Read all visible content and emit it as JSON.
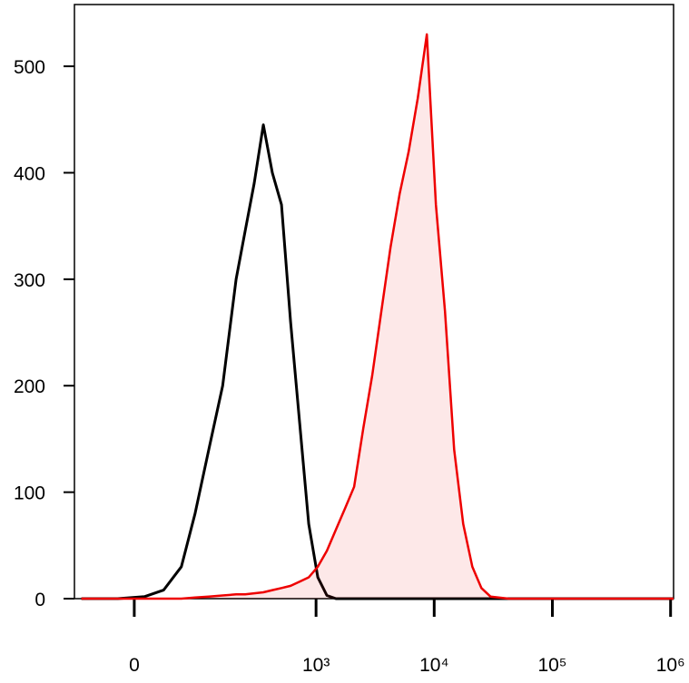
{
  "chart_data": {
    "type": "line",
    "xscale": "asinh",
    "x": [
      -71,
      -19,
      12,
      35,
      61,
      86,
      117,
      157,
      207,
      248,
      297,
      356,
      425,
      509,
      608,
      726,
      867,
      1035,
      1235,
      1475,
      1762,
      2102,
      2511,
      2995,
      3574,
      4267,
      5094,
      6080,
      7258,
      8665,
      10345,
      12350,
      14742,
      17600,
      21010,
      25080,
      29940,
      42650,
      86430,
      503400,
      1060000
    ],
    "series": [
      {
        "color": "#000000",
        "fill": false,
        "values": [
          0,
          0,
          2,
          8,
          30,
          80,
          140,
          200,
          300,
          345,
          390,
          445,
          400,
          370,
          260,
          165,
          70,
          20,
          3,
          0,
          0,
          0,
          0,
          0,
          0,
          0,
          0,
          0,
          0,
          0,
          0,
          0,
          0,
          0,
          0,
          0,
          0,
          0,
          0,
          0,
          0
        ]
      },
      {
        "color": "#ee0000",
        "fill": true,
        "values": [
          0,
          0,
          0,
          0,
          0,
          1,
          2,
          3,
          4,
          4,
          5,
          6,
          8,
          10,
          12,
          16,
          20,
          30,
          45,
          65,
          85,
          105,
          160,
          210,
          270,
          330,
          380,
          420,
          470,
          530,
          370,
          270,
          140,
          70,
          30,
          10,
          2,
          0,
          0,
          0,
          0
        ]
      }
    ],
    "xlim": [
      -84,
      1060000
    ],
    "xticks": [
      0,
      {
        "value": 1000,
        "label": "10³"
      },
      {
        "value": 10000,
        "label": "10⁴"
      },
      {
        "value": 100000,
        "label": "10⁵"
      },
      {
        "value": 1000000,
        "label": "10⁶"
      }
    ],
    "ylim": [
      0,
      558
    ],
    "yticks": [
      0,
      100,
      200,
      300,
      400,
      500
    ]
  }
}
